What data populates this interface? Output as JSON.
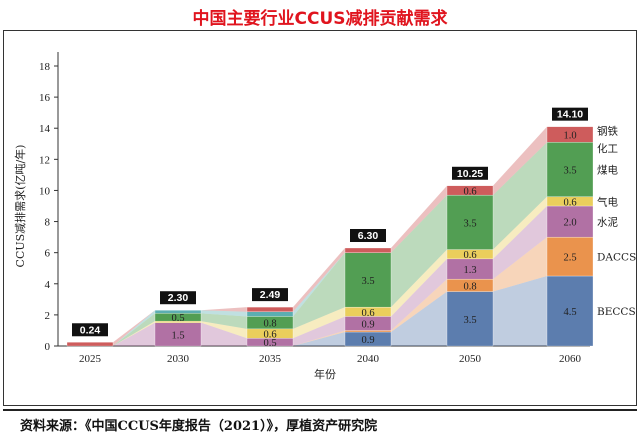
{
  "title": "中国主要行业CCUS减排贡献需求",
  "source": "资料来源：《中国CCUS年度报告（2021）》，厚植资产研究院",
  "chart_data": {
    "type": "bar",
    "stacked": true,
    "xlabel": "年份",
    "ylabel": "CCUS减排需求(亿吨/年)",
    "ylim": [
      0,
      18
    ],
    "yticks": [
      0,
      2,
      4,
      6,
      8,
      10,
      12,
      14,
      16,
      18
    ],
    "categories": [
      "2025",
      "2030",
      "2035",
      "2040",
      "2050",
      "2060"
    ],
    "totals": [
      "0.24",
      "2.30",
      "2.49",
      "6.30",
      "10.25",
      "14.10"
    ],
    "series": [
      {
        "name": "BECCS",
        "color": "#4a6fa5",
        "values": [
          0.0,
          0.0,
          0.0,
          0.9,
          3.5,
          4.5
        ]
      },
      {
        "name": "DACCS",
        "color": "#e8873a",
        "values": [
          0.0,
          0.0,
          0.0,
          0.1,
          0.8,
          2.5
        ]
      },
      {
        "name": "水泥",
        "color": "#a8629a",
        "values": [
          0.0,
          1.5,
          0.5,
          0.9,
          1.3,
          2.0
        ]
      },
      {
        "name": "气电",
        "color": "#e8c94a",
        "values": [
          0.0,
          0.1,
          0.6,
          0.6,
          0.6,
          0.6
        ]
      },
      {
        "name": "煤电",
        "color": "#3f9440",
        "values": [
          0.0,
          0.5,
          0.8,
          3.5,
          3.5,
          3.5
        ]
      },
      {
        "name": "化工",
        "color": "#4aa5a8",
        "values": [
          0.0,
          0.2,
          0.3,
          0.0,
          0.0,
          0.0
        ]
      },
      {
        "name": "钢铁",
        "color": "#c94a4a",
        "values": [
          0.24,
          0.0,
          0.3,
          0.3,
          0.6,
          1.0
        ]
      }
    ],
    "segment_labels": [
      {
        "category": "2030",
        "series": "水泥",
        "text": "1.5"
      },
      {
        "category": "2030",
        "series": "煤电",
        "text": "0.5"
      },
      {
        "category": "2035",
        "series": "水泥",
        "text": "0.5"
      },
      {
        "category": "2035",
        "series": "气电",
        "text": "0.6"
      },
      {
        "category": "2035",
        "series": "煤电",
        "text": "0.8"
      },
      {
        "category": "2040",
        "series": "BECCS",
        "text": "0.9"
      },
      {
        "category": "2040",
        "series": "水泥",
        "text": "0.9"
      },
      {
        "category": "2040",
        "series": "气电",
        "text": "0.6"
      },
      {
        "category": "2040",
        "series": "煤电",
        "text": "3.5"
      },
      {
        "category": "2050",
        "series": "BECCS",
        "text": "3.5"
      },
      {
        "category": "2050",
        "series": "DACCS",
        "text": "0.8"
      },
      {
        "category": "2050",
        "series": "水泥",
        "text": "1.3"
      },
      {
        "category": "2050",
        "series": "气电",
        "text": "0.6"
      },
      {
        "category": "2050",
        "series": "煤电",
        "text": "3.5"
      },
      {
        "category": "2050",
        "series": "钢铁",
        "text": "0.6"
      },
      {
        "category": "2060",
        "series": "BECCS",
        "text": "4.5"
      },
      {
        "category": "2060",
        "series": "DACCS",
        "text": "2.5"
      },
      {
        "category": "2060",
        "series": "水泥",
        "text": "2.0"
      },
      {
        "category": "2060",
        "series": "气电",
        "text": "0.6"
      },
      {
        "category": "2060",
        "series": "煤电",
        "text": "3.5"
      },
      {
        "category": "2060",
        "series": "钢铁",
        "text": "1.0"
      }
    ],
    "grid": false,
    "legend": "right, inline labels next to the 2060 bar"
  }
}
